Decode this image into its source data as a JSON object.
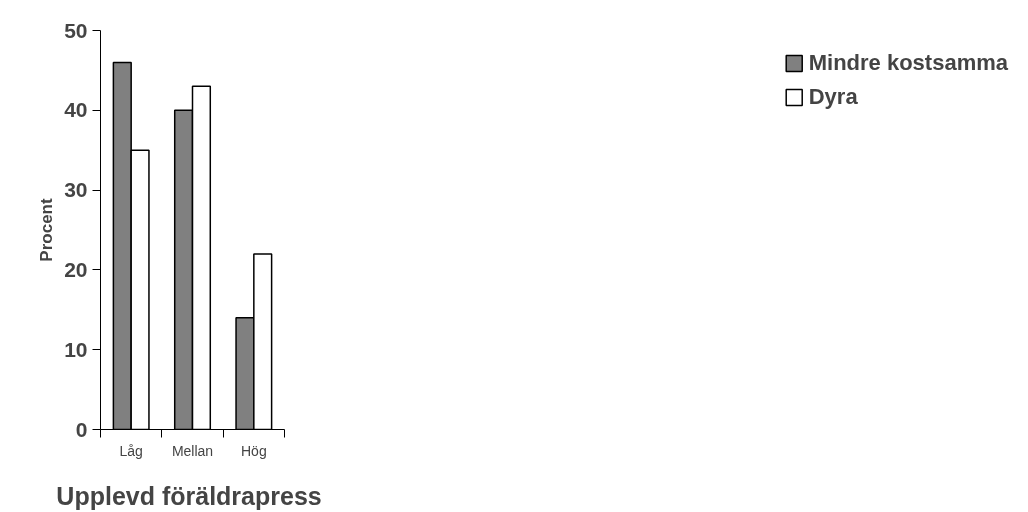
{
  "chart_data": {
    "type": "bar",
    "xlabel": "Upplevd  föräldrapress",
    "ylabel": "Procent",
    "categories": [
      "Låg",
      "Mellan",
      "Hög"
    ],
    "series": [
      {
        "name": "Mindre kostsamma",
        "color": "#808080",
        "values": [
          46,
          40,
          14
        ]
      },
      {
        "name": "Dyra",
        "color": "#ffffff",
        "values": [
          35,
          43,
          22
        ]
      }
    ],
    "ylim": [
      0,
      50
    ],
    "yticks": [
      0,
      10,
      20,
      30,
      40,
      50
    ],
    "grid": false,
    "legend": "right"
  }
}
